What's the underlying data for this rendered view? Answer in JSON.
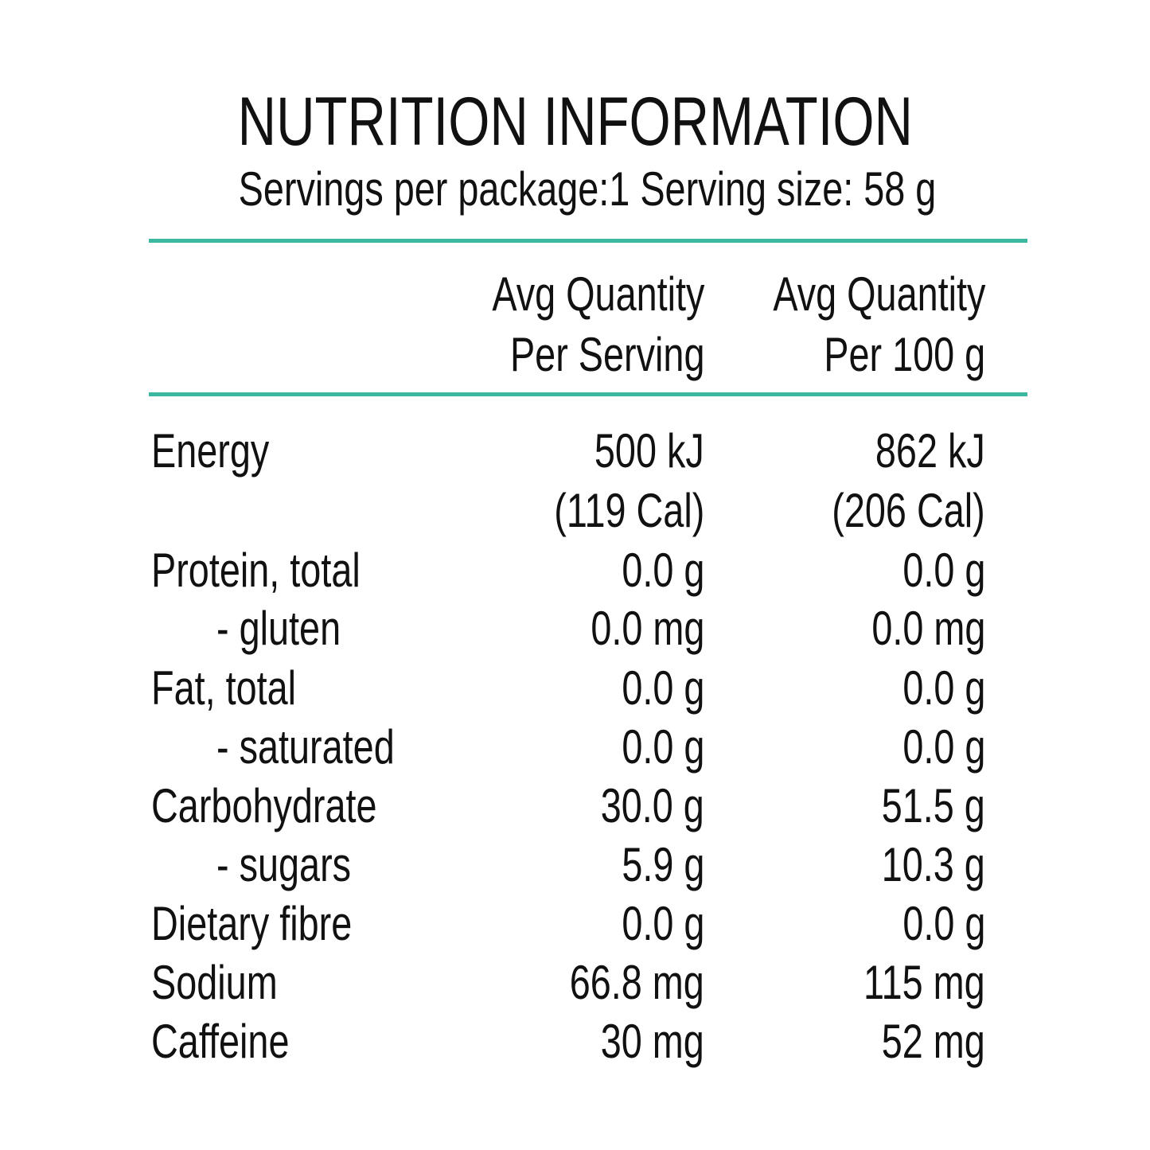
{
  "panel": {
    "title": "NUTRITION INFORMATION",
    "servings_line": "Servings per package:1 Serving size: 58 g",
    "rule_color": "#3db8a0"
  },
  "table": {
    "headers": [
      {
        "line1": "Avg Quantity",
        "line2": "Per Serving"
      },
      {
        "line1": "Avg Quantity",
        "line2": "Per 100 g"
      }
    ],
    "rows": [
      {
        "label": "Energy",
        "sub": false,
        "per_serving": "500 kJ",
        "per_100g": "862 kJ"
      },
      {
        "label": "",
        "sub": false,
        "per_serving": "(119 Cal)",
        "per_100g": "(206 Cal)"
      },
      {
        "label": "Protein, total",
        "sub": false,
        "per_serving": "0.0 g",
        "per_100g": "0.0 g"
      },
      {
        "label": "- gluten",
        "sub": true,
        "per_serving": "0.0 mg",
        "per_100g": "0.0 mg"
      },
      {
        "label": "Fat, total",
        "sub": false,
        "per_serving": "0.0 g",
        "per_100g": "0.0 g"
      },
      {
        "label": "- saturated",
        "sub": true,
        "per_serving": "0.0 g",
        "per_100g": "0.0 g"
      },
      {
        "label": "Carbohydrate",
        "sub": false,
        "per_serving": "30.0 g",
        "per_100g": "51.5 g"
      },
      {
        "label": "- sugars",
        "sub": true,
        "per_serving": "5.9 g",
        "per_100g": "10.3 g"
      },
      {
        "label": "Dietary fibre",
        "sub": false,
        "per_serving": "0.0 g",
        "per_100g": "0.0 g"
      },
      {
        "label": "Sodium",
        "sub": false,
        "per_serving": "66.8 mg",
        "per_100g": "115 mg"
      },
      {
        "label": "Caffeine",
        "sub": false,
        "per_serving": "30 mg",
        "per_100g": "52 mg"
      }
    ]
  }
}
